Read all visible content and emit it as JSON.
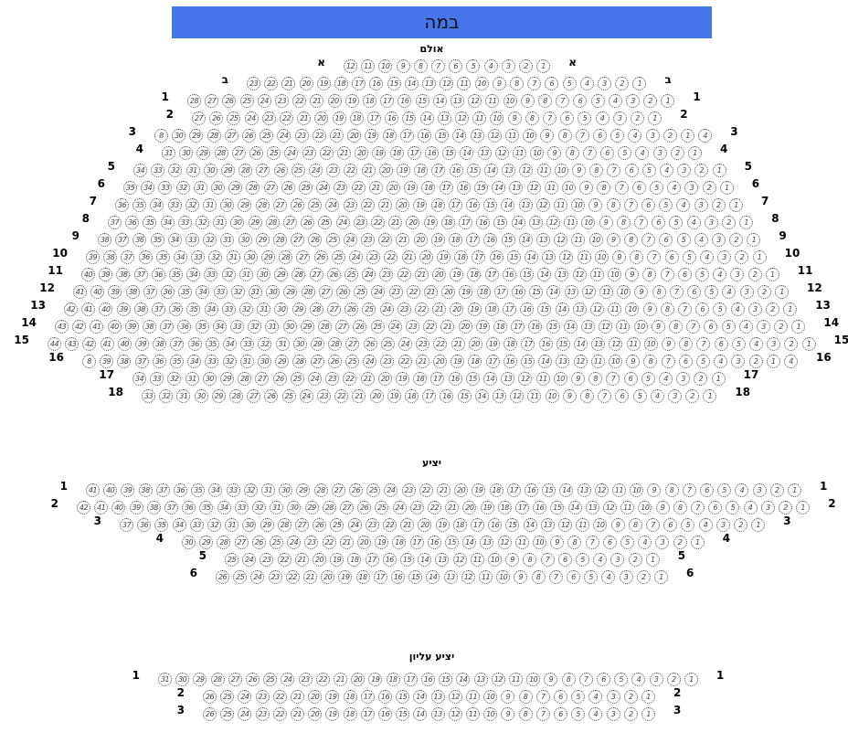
{
  "stage": {
    "label": "במה",
    "color": "#4475e9"
  },
  "sections": [
    {
      "title": "אולם",
      "rows": [
        {
          "label": "א",
          "count": 12
        },
        {
          "label": "ב",
          "count": 23
        },
        {
          "label": "1",
          "count": 28
        },
        {
          "label": "2",
          "count": 27
        },
        {
          "label": "3",
          "count": 30,
          "prefix": [
            "8"
          ],
          "suffix": [
            "4"
          ]
        },
        {
          "label": "4",
          "count": 31
        },
        {
          "label": "5",
          "count": 34
        },
        {
          "label": "6",
          "count": 35
        },
        {
          "label": "7",
          "count": 36
        },
        {
          "label": "8",
          "count": 37
        },
        {
          "label": "9",
          "count": 38
        },
        {
          "label": "10",
          "count": 39
        },
        {
          "label": "11",
          "count": 40
        },
        {
          "label": "12",
          "count": 41
        },
        {
          "label": "13",
          "count": 42
        },
        {
          "label": "14",
          "count": 43
        },
        {
          "label": "15",
          "count": 44
        },
        {
          "label": "16",
          "count": 39,
          "prefix": [
            "8"
          ],
          "suffix": [
            "4"
          ]
        },
        {
          "label": "17",
          "count": 34
        },
        {
          "label": "18",
          "count": 33
        }
      ]
    },
    {
      "title": "יציע",
      "rows": [
        {
          "label": "1",
          "count": 41
        },
        {
          "label": "2",
          "count": 42
        },
        {
          "label": "3",
          "count": 37
        },
        {
          "label": "4",
          "count": 30
        },
        {
          "label": "5",
          "count": 25
        },
        {
          "label": "6",
          "count": 26
        }
      ]
    },
    {
      "title": "יציע עליון",
      "rows": [
        {
          "label": "1",
          "count": 31
        },
        {
          "label": "2",
          "count": 26
        },
        {
          "label": "3",
          "count": 26
        }
      ]
    }
  ]
}
